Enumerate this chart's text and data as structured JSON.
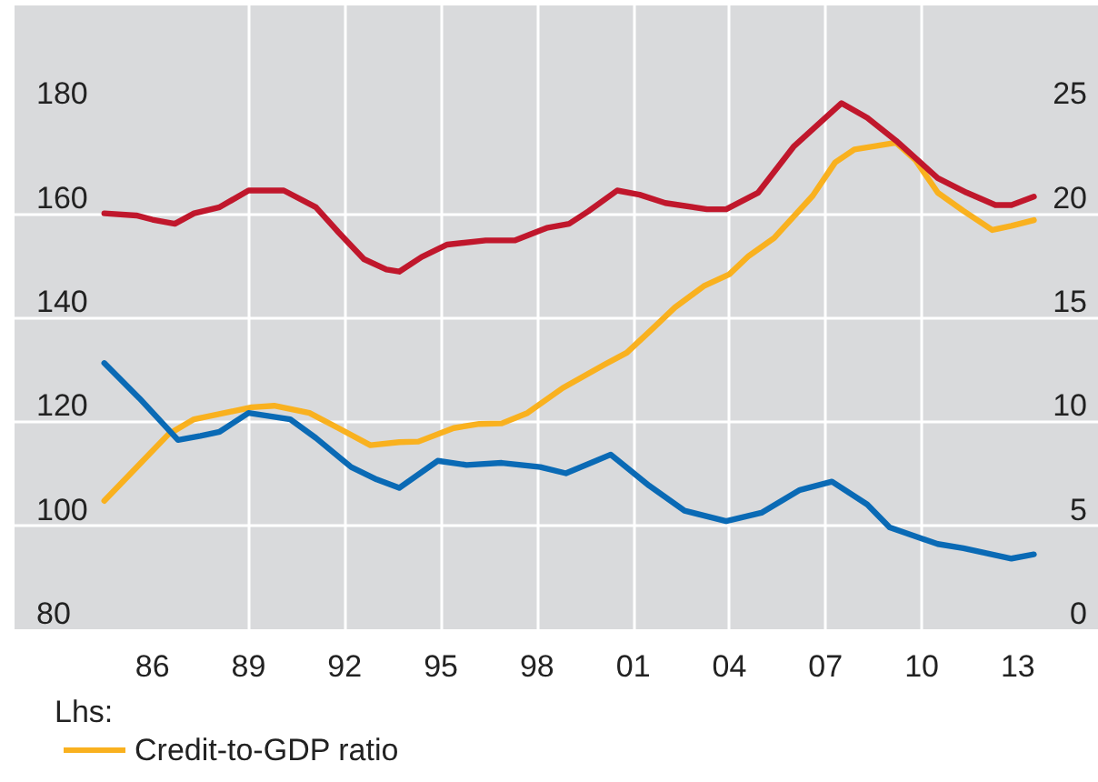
{
  "chart_data": {
    "type": "line",
    "legend_title": "Lhs:",
    "legend": "bottom left",
    "grid": true,
    "line_style": "solid",
    "marker": "none",
    "xlim": [
      1981.7,
      2015.5
    ],
    "xticks": [
      {
        "value": 1986,
        "label": "86"
      },
      {
        "value": 1989,
        "label": "89"
      },
      {
        "value": 1992,
        "label": "92"
      },
      {
        "value": 1995,
        "label": "95"
      },
      {
        "value": 1998,
        "label": "98"
      },
      {
        "value": 2001,
        "label": "01"
      },
      {
        "value": 2004,
        "label": "04"
      },
      {
        "value": 2007,
        "label": "07"
      },
      {
        "value": 2010,
        "label": "10"
      },
      {
        "value": 2013,
        "label": "13"
      }
    ],
    "ylim": [
      80,
      200
    ],
    "yticks": [
      80,
      100,
      120,
      140,
      160,
      180
    ],
    "y2lim": [
      0,
      30
    ],
    "y2ticks": [
      0,
      5,
      10,
      15,
      20,
      25
    ],
    "series": [
      {
        "name": "Credit-to-GDP ratio",
        "color": "#f9b11f",
        "x": [
          1984.5,
          1985.5,
          1986.5,
          1987.3,
          1989.1,
          1989.8,
          1990.9,
          1991.8,
          1992.8,
          1993.7,
          1994.3,
          1995.4,
          1996.2,
          1996.9,
          1997.7,
          1998.8,
          2000.1,
          2000.8,
          2001.6,
          2002.3,
          2003.2,
          2004.0,
          2004.6,
          2005.4,
          2006.6,
          2007.3,
          2007.9,
          2008.6,
          2009.2,
          2009.8,
          2010.5,
          2011.3,
          2012.2,
          2012.8,
          2013.5
        ],
        "values": [
          104.7,
          111.1,
          117.5,
          120.4,
          122.7,
          123.0,
          121.6,
          118.7,
          115.4,
          116.0,
          116.1,
          118.7,
          119.5,
          119.6,
          121.6,
          126.4,
          130.9,
          133.2,
          137.8,
          141.9,
          146.0,
          148.3,
          151.8,
          155.3,
          163.4,
          169.8,
          172.3,
          173.0,
          173.6,
          170.3,
          164.0,
          160.5,
          156.8,
          157.6,
          158.7
        ]
      },
      {
        "color": "#c0172c",
        "axis": "y2",
        "x": [
          1984.5,
          1985.5,
          1986.0,
          1986.7,
          1987.3,
          1988.1,
          1989.0,
          1990.1,
          1991.1,
          1991.8,
          1992.6,
          1993.3,
          1993.7,
          1994.4,
          1995.2,
          1996.4,
          1997.3,
          1998.3,
          1999.0,
          1999.6,
          2000.5,
          2001.2,
          2002.0,
          2003.3,
          2003.9,
          2004.9,
          2006.0,
          2007.5,
          2008.3,
          2009.2,
          2010.5,
          2011.4,
          2012.3,
          2012.8,
          2013.5
        ],
        "values": [
          20.0,
          19.9,
          19.7,
          19.5,
          20.0,
          20.3,
          21.1,
          21.1,
          20.3,
          19.1,
          17.8,
          17.3,
          17.2,
          17.9,
          18.5,
          18.7,
          18.7,
          19.3,
          19.5,
          20.1,
          21.1,
          20.9,
          20.5,
          20.2,
          20.2,
          21.0,
          23.2,
          25.3,
          24.6,
          23.5,
          21.7,
          21.0,
          20.4,
          20.4,
          20.8
        ]
      },
      {
        "color": "#0a6ab5",
        "axis": "y2",
        "x": [
          1984.5,
          1985.6,
          1986.8,
          1987.5,
          1988.1,
          1989.0,
          1990.3,
          1991.1,
          1992.2,
          1993.0,
          1993.7,
          1994.9,
          1995.8,
          1996.9,
          1998.1,
          1998.9,
          2000.3,
          2001.5,
          2002.6,
          2003.9,
          2005.0,
          2006.2,
          2007.2,
          2008.3,
          2009.0,
          2010.5,
          2011.3,
          2012.8,
          2013.5
        ],
        "values": [
          12.8,
          11.1,
          9.1,
          9.3,
          9.5,
          10.4,
          10.1,
          9.2,
          7.8,
          7.2,
          6.8,
          8.1,
          7.9,
          8.0,
          7.8,
          7.5,
          8.4,
          6.9,
          5.7,
          5.2,
          5.6,
          6.7,
          7.1,
          6.0,
          4.9,
          4.1,
          3.9,
          3.4,
          3.6
        ]
      }
    ]
  }
}
